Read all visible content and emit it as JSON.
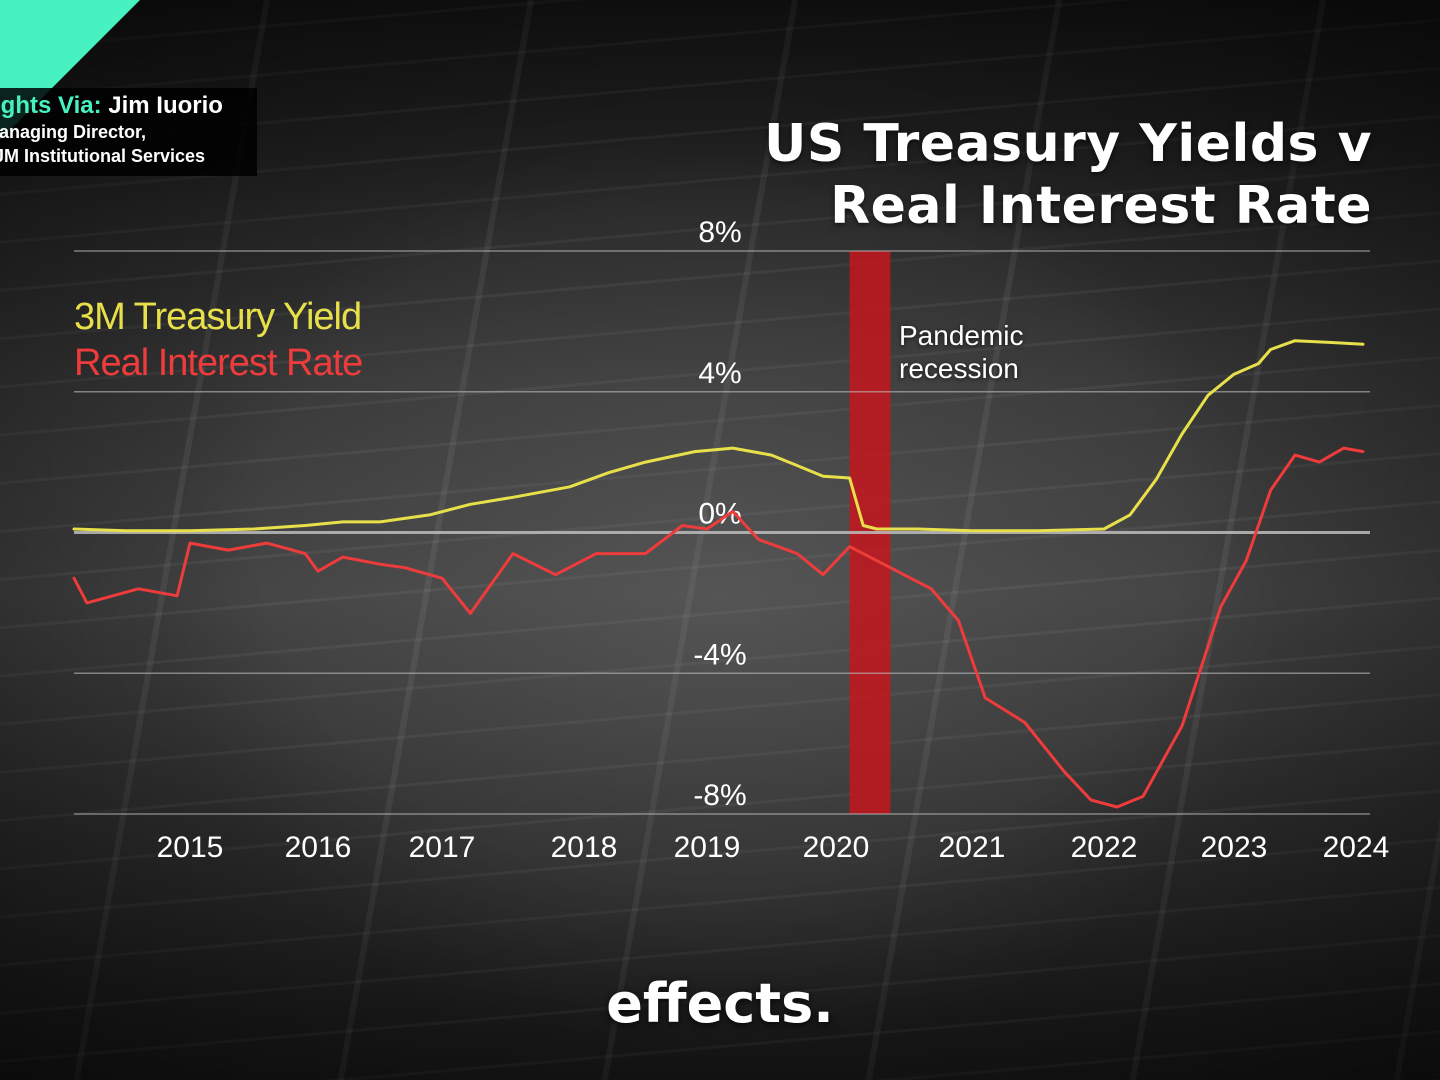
{
  "credits": {
    "lead": "ights Via:",
    "name": "Jim Iuorio",
    "role": "lanaging Director,",
    "org": "JM Institutional Services"
  },
  "colors": {
    "accent": "#47f2c0",
    "treasury_line": "#e8e04a",
    "real_rate_line": "#ee3b3b",
    "recession_band": "#c4161c",
    "grid": "#bdbdbd"
  },
  "caption": "effects.",
  "chart_data": {
    "type": "line",
    "title": "US Treasury Yields v\nReal Interest Rate",
    "title_lines": [
      "US Treasury Yields v",
      "Real Interest Rate"
    ],
    "xlabel": "",
    "ylabel": "",
    "ylim": [
      -8,
      8
    ],
    "xlim": [
      2014.1,
      2024.2
    ],
    "y_ticks": [
      8,
      4,
      0,
      -4,
      -8
    ],
    "y_tick_labels": [
      "8%",
      "4%",
      "0%",
      "-4%",
      "-8%"
    ],
    "x_ticks": [
      2015,
      2016,
      2017,
      2018,
      2019,
      2020,
      2021,
      2022,
      2023,
      2024
    ],
    "x_tick_labels": [
      "2015",
      "2016",
      "2017",
      "2018",
      "2019",
      "2020",
      "2021",
      "2022",
      "2023",
      "2024"
    ],
    "grid": true,
    "legend_position": "top-left",
    "annotation": {
      "label_lines": [
        "Pandemic",
        "recession"
      ],
      "x_start": 2020.1,
      "x_end": 2020.4
    },
    "series": [
      {
        "name": "3M Treasury Yield",
        "color": "#e8e04a",
        "points": [
          [
            2014.1,
            0.1
          ],
          [
            2014.5,
            0.05
          ],
          [
            2015.0,
            0.05
          ],
          [
            2015.5,
            0.1
          ],
          [
            2015.9,
            0.2
          ],
          [
            2016.2,
            0.3
          ],
          [
            2016.5,
            0.3
          ],
          [
            2016.9,
            0.5
          ],
          [
            2017.2,
            0.8
          ],
          [
            2017.5,
            1.0
          ],
          [
            2017.9,
            1.3
          ],
          [
            2018.2,
            1.7
          ],
          [
            2018.5,
            2.0
          ],
          [
            2018.9,
            2.3
          ],
          [
            2019.2,
            2.4
          ],
          [
            2019.5,
            2.2
          ],
          [
            2019.7,
            1.9
          ],
          [
            2019.9,
            1.6
          ],
          [
            2020.1,
            1.55
          ],
          [
            2020.2,
            0.2
          ],
          [
            2020.3,
            0.1
          ],
          [
            2020.6,
            0.1
          ],
          [
            2021.0,
            0.05
          ],
          [
            2021.5,
            0.05
          ],
          [
            2022.0,
            0.1
          ],
          [
            2022.2,
            0.5
          ],
          [
            2022.4,
            1.5
          ],
          [
            2022.6,
            2.8
          ],
          [
            2022.8,
            3.9
          ],
          [
            2023.0,
            4.5
          ],
          [
            2023.2,
            4.8
          ],
          [
            2023.3,
            5.2
          ],
          [
            2023.5,
            5.45
          ],
          [
            2023.8,
            5.4
          ],
          [
            2024.1,
            5.35
          ]
        ]
      },
      {
        "name": "Real Interest Rate",
        "color": "#ee3b3b",
        "points": [
          [
            2014.1,
            -1.3
          ],
          [
            2014.2,
            -2.0
          ],
          [
            2014.6,
            -1.6
          ],
          [
            2014.9,
            -1.8
          ],
          [
            2015.0,
            -0.3
          ],
          [
            2015.3,
            -0.5
          ],
          [
            2015.6,
            -0.3
          ],
          [
            2015.9,
            -0.6
          ],
          [
            2016.0,
            -1.1
          ],
          [
            2016.2,
            -0.7
          ],
          [
            2016.5,
            -0.9
          ],
          [
            2016.7,
            -1.0
          ],
          [
            2017.0,
            -1.3
          ],
          [
            2017.2,
            -2.3
          ],
          [
            2017.5,
            -0.6
          ],
          [
            2017.8,
            -1.2
          ],
          [
            2018.1,
            -0.6
          ],
          [
            2018.5,
            -0.6
          ],
          [
            2018.8,
            0.2
          ],
          [
            2019.0,
            0.1
          ],
          [
            2019.2,
            0.6
          ],
          [
            2019.4,
            -0.2
          ],
          [
            2019.7,
            -0.6
          ],
          [
            2019.9,
            -1.2
          ],
          [
            2020.1,
            -0.4
          ],
          [
            2020.4,
            -1.0
          ],
          [
            2020.7,
            -1.6
          ],
          [
            2020.9,
            -2.5
          ],
          [
            2021.1,
            -4.7
          ],
          [
            2021.4,
            -5.4
          ],
          [
            2021.7,
            -6.8
          ],
          [
            2021.9,
            -7.6
          ],
          [
            2022.1,
            -7.8
          ],
          [
            2022.3,
            -7.5
          ],
          [
            2022.6,
            -5.5
          ],
          [
            2022.9,
            -2.1
          ],
          [
            2023.1,
            -0.8
          ],
          [
            2023.3,
            1.2
          ],
          [
            2023.5,
            2.2
          ],
          [
            2023.7,
            2.0
          ],
          [
            2023.9,
            2.4
          ],
          [
            2024.1,
            2.3
          ]
        ]
      }
    ]
  }
}
